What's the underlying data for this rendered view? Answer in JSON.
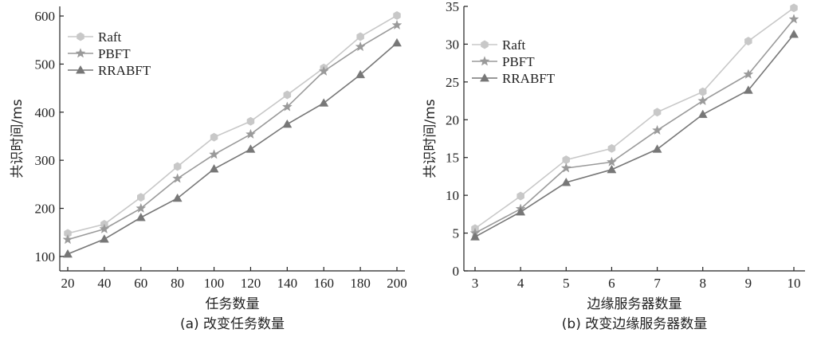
{
  "chart_data": [
    {
      "type": "line",
      "caption": "(a) 改变任务数量",
      "xlabel": "任务数量",
      "ylabel": "共识时间/ms",
      "x": [
        20,
        40,
        60,
        80,
        100,
        120,
        140,
        160,
        180,
        200
      ],
      "xticks": [
        "20",
        "40",
        "60",
        "80",
        "100",
        "120",
        "140",
        "160",
        "180",
        "200"
      ],
      "ylim": [
        70,
        620
      ],
      "yticks": [
        100,
        200,
        300,
        400,
        500,
        600
      ],
      "legend_position": "top-left",
      "grid": false,
      "series": [
        {
          "name": "Raft",
          "marker": "hexagon",
          "color": "#c8c8c8",
          "values": [
            148,
            167,
            223,
            287,
            348,
            381,
            436,
            492,
            557,
            601
          ]
        },
        {
          "name": "PBFT",
          "marker": "star",
          "color": "#9a9a9a",
          "values": [
            135,
            157,
            200,
            262,
            312,
            354,
            411,
            485,
            536,
            581
          ]
        },
        {
          "name": "RRABFT",
          "marker": "triangle",
          "color": "#777777",
          "values": [
            105,
            136,
            181,
            221,
            282,
            323,
            375,
            419,
            478,
            544
          ]
        }
      ]
    },
    {
      "type": "line",
      "caption": "(b) 改变边缘服务器数量",
      "xlabel": "边缘服务器数量",
      "ylabel": "共识时间/ms",
      "x": [
        3,
        4,
        5,
        6,
        7,
        8,
        9,
        10
      ],
      "xticks": [
        "3",
        "4",
        "5",
        "6",
        "7",
        "8",
        "9",
        "10"
      ],
      "ylim": [
        0,
        35
      ],
      "yticks": [
        0,
        5,
        10,
        15,
        20,
        25,
        30,
        35
      ],
      "legend_position": "top-left",
      "grid": false,
      "series": [
        {
          "name": "Raft",
          "marker": "hexagon",
          "color": "#c8c8c8",
          "values": [
            5.6,
            9.9,
            14.7,
            16.2,
            21.0,
            23.7,
            30.4,
            34.8
          ]
        },
        {
          "name": "PBFT",
          "marker": "star",
          "color": "#9a9a9a",
          "values": [
            5.0,
            8.2,
            13.6,
            14.4,
            18.6,
            22.5,
            26.0,
            33.3
          ]
        },
        {
          "name": "RRABFT",
          "marker": "triangle",
          "color": "#777777",
          "values": [
            4.5,
            7.8,
            11.7,
            13.4,
            16.1,
            20.7,
            23.9,
            31.3
          ]
        }
      ]
    }
  ]
}
